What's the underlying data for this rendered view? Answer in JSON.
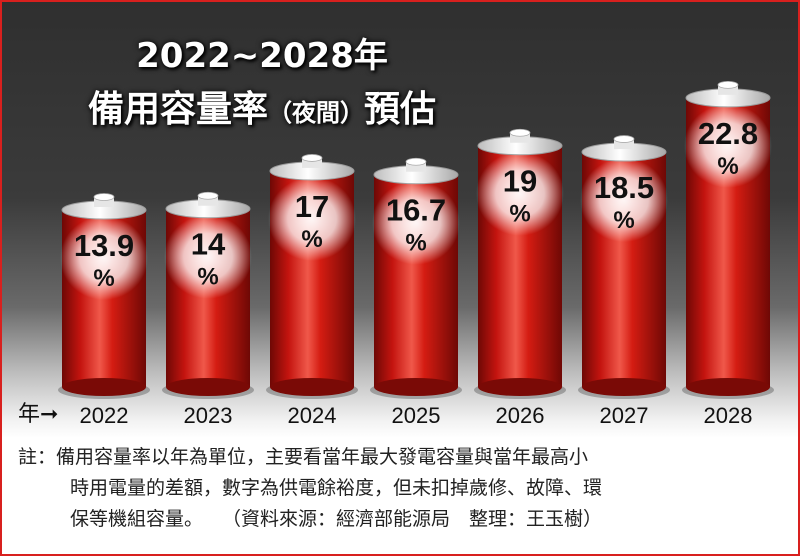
{
  "title": {
    "line1": "2022~2028年",
    "line2_main": "備用容量率",
    "line2_small": "（夜間）",
    "line2_tail": "預估"
  },
  "axis_prefix": "年➞",
  "chart_data": {
    "type": "bar",
    "categories": [
      "2022",
      "2023",
      "2024",
      "2025",
      "2026",
      "2027",
      "2028"
    ],
    "values": [
      13.9,
      14,
      17,
      16.7,
      19,
      18.5,
      22.8
    ],
    "value_labels": [
      "13.9",
      "14",
      "17",
      "16.7",
      "19",
      "18.5",
      "22.8"
    ],
    "unit": "%",
    "ylim": [
      0,
      25
    ]
  },
  "colors": {
    "bar_red": "#c4140f",
    "bar_dark": "#6e0805",
    "cap": "#f2f2f2"
  },
  "note": {
    "line1": "註：備用容量率以年為單位，主要看當年最大發電容量與當年最高小",
    "line2": "時用電量的差額，數字為供電餘裕度，但未扣掉歲修、故障、環",
    "line3": "保等機組容量。　　（資料來源：經濟部能源局　整理：王玉樹）"
  }
}
